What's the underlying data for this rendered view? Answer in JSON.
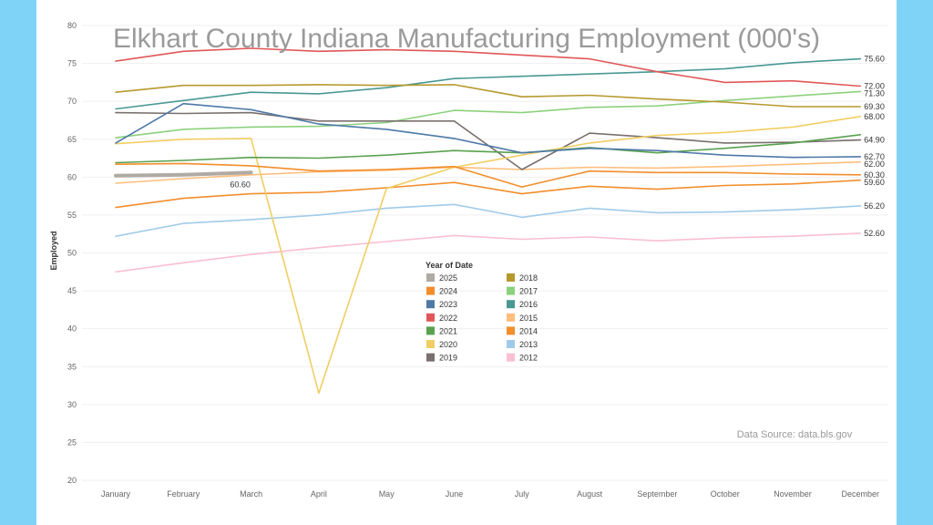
{
  "chart_data": {
    "type": "line",
    "title": "Elkhart County Indiana Manufacturing Employment (000's)",
    "ylabel": "Employed",
    "xlabel": "",
    "ylim": [
      20,
      80
    ],
    "yticks": [
      20,
      25,
      30,
      35,
      40,
      45,
      50,
      55,
      60,
      65,
      70,
      75,
      80
    ],
    "categories": [
      "January",
      "February",
      "March",
      "April",
      "May",
      "June",
      "July",
      "August",
      "September",
      "October",
      "November",
      "December"
    ],
    "legend_title": "Year of Date",
    "source_note": "Data Source: data.bls.gov",
    "grid": true,
    "legend_position": "center",
    "series": [
      {
        "name": "2025",
        "color": "#b0aaa4",
        "values": [
          60.2,
          60.3,
          60.6,
          null,
          null,
          null,
          null,
          null,
          null,
          null,
          null,
          null
        ]
      },
      {
        "name": "2024",
        "color": "#f28e2b",
        "values": [
          61.7,
          61.8,
          61.5,
          60.8,
          61.0,
          61.4,
          58.7,
          60.8,
          60.6,
          60.6,
          60.4,
          60.3
        ]
      },
      {
        "name": "2023",
        "color": "#4e79a7",
        "values": [
          64.5,
          69.7,
          68.9,
          67.0,
          66.3,
          65.1,
          63.2,
          63.8,
          63.5,
          62.9,
          62.6,
          62.7
        ]
      },
      {
        "name": "2022",
        "color": "#e15759",
        "values": [
          75.3,
          76.6,
          77.0,
          76.6,
          76.8,
          76.6,
          76.1,
          75.6,
          73.9,
          72.5,
          72.7,
          72.0
        ]
      },
      {
        "name": "2021",
        "color": "#59a14f",
        "values": [
          61.9,
          62.2,
          62.6,
          62.5,
          62.9,
          63.5,
          63.2,
          63.9,
          63.2,
          63.8,
          64.5,
          65.6
        ]
      },
      {
        "name": "2020",
        "color": "#f1ce63",
        "values": [
          64.4,
          65.0,
          65.1,
          31.5,
          58.5,
          61.3,
          62.9,
          64.5,
          65.5,
          65.9,
          66.6,
          68.0
        ]
      },
      {
        "name": "2019",
        "color": "#79706e",
        "values": [
          68.5,
          68.4,
          68.5,
          67.4,
          67.4,
          67.4,
          61.0,
          65.8,
          65.2,
          64.5,
          64.6,
          64.9
        ]
      },
      {
        "name": "2018",
        "color": "#b6992d",
        "values": [
          71.2,
          72.1,
          72.1,
          72.2,
          72.1,
          72.2,
          70.6,
          70.8,
          70.3,
          69.9,
          69.3,
          69.3
        ]
      },
      {
        "name": "2017",
        "color": "#8cd17d",
        "values": [
          65.2,
          66.3,
          66.6,
          66.7,
          67.2,
          68.8,
          68.5,
          69.2,
          69.4,
          70.1,
          70.7,
          71.3
        ]
      },
      {
        "name": "2016",
        "color": "#499894",
        "values": [
          69.0,
          70.1,
          71.2,
          71.0,
          71.8,
          73.0,
          73.3,
          73.6,
          73.9,
          74.3,
          75.1,
          75.6
        ]
      },
      {
        "name": "2015",
        "color": "#ffbe7d",
        "values": [
          59.2,
          59.8,
          60.3,
          60.7,
          60.9,
          61.3,
          61.0,
          61.3,
          61.2,
          61.4,
          61.7,
          62.0
        ]
      },
      {
        "name": "2014",
        "color": "#f28e2b",
        "values": [
          56.0,
          57.2,
          57.8,
          58.0,
          58.6,
          59.3,
          57.8,
          58.8,
          58.4,
          58.9,
          59.1,
          59.6
        ]
      },
      {
        "name": "2013",
        "color": "#a0cbe8",
        "values": [
          52.2,
          53.9,
          54.4,
          55.0,
          55.9,
          56.4,
          54.7,
          55.9,
          55.3,
          55.4,
          55.7,
          56.2
        ]
      },
      {
        "name": "2012",
        "color": "#fabfd2",
        "values": [
          47.5,
          48.7,
          49.8,
          50.7,
          51.5,
          52.3,
          51.8,
          52.1,
          51.6,
          52.0,
          52.2,
          52.6
        ]
      }
    ],
    "end_labels": [
      {
        "text": "75.60",
        "value": 75.6
      },
      {
        "text": "72.00",
        "value": 72.0
      },
      {
        "text": "71.30",
        "value": 71.3
      },
      {
        "text": "69.30",
        "value": 69.3
      },
      {
        "text": "68.00",
        "value": 68.0
      },
      {
        "text": "64.90",
        "value": 64.9
      },
      {
        "text": "62.70",
        "value": 62.7
      },
      {
        "text": "62.00",
        "value": 62.0
      },
      {
        "text": "60.30",
        "value": 60.3
      },
      {
        "text": "59.60",
        "value": 59.6
      },
      {
        "text": "56.20",
        "value": 56.2
      },
      {
        "text": "52.60",
        "value": 52.6
      }
    ],
    "march_label": {
      "text": "60.60",
      "value": 60.6
    }
  }
}
